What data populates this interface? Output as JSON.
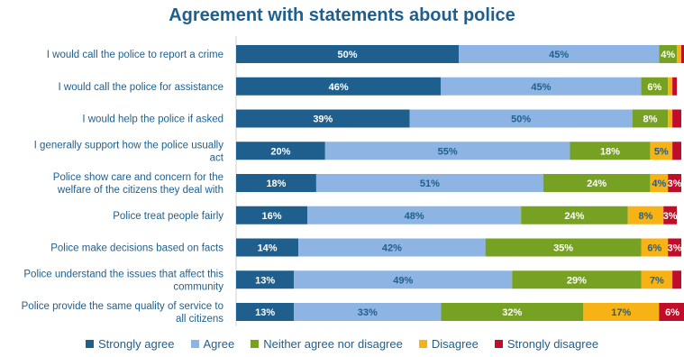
{
  "chart_data": {
    "type": "bar",
    "orientation": "horizontal",
    "stacked": true,
    "title": "Agreement with statements about police",
    "categories": [
      "I would call the police to report a crime",
      "I would call the police for assistance",
      "I would help the police if asked",
      "I generally support how the police usually act",
      "Police show care and concern for the welfare of the citizens they deal with",
      "Police treat people fairly",
      "Police make decisions based on facts",
      "Police understand the issues that affect this community",
      "Police provide the same quality of service to all citizens"
    ],
    "category_lines": [
      [
        "I would call the police to report a crime"
      ],
      [
        "I would call the police for assistance"
      ],
      [
        "I would help the police if asked"
      ],
      [
        "I generally support how the police usually",
        "act"
      ],
      [
        "Police show care and concern for the",
        "welfare of the citizens they deal with"
      ],
      [
        "Police treat people fairly"
      ],
      [
        "Police make decisions based on facts"
      ],
      [
        "Police understand the issues that affect this",
        "community"
      ],
      [
        "Police provide the same quality of service to",
        "all citizens"
      ]
    ],
    "series": [
      {
        "name": "Strongly agree",
        "color": "#1f5f8e",
        "label_color": "#ffffff",
        "values": [
          50,
          46,
          39,
          20,
          18,
          16,
          14,
          13,
          13
        ]
      },
      {
        "name": "Agree",
        "color": "#8db4e2",
        "label_color": "#1f5f8e",
        "values": [
          45,
          45,
          50,
          55,
          51,
          48,
          42,
          49,
          33
        ]
      },
      {
        "name": "Neither agree nor disagree",
        "color": "#77a123",
        "label_color": "#ffffff",
        "values": [
          4,
          6,
          8,
          18,
          24,
          24,
          35,
          29,
          32
        ]
      },
      {
        "name": "Disagree",
        "color": "#f7b216",
        "label_color": "#1f5f8e",
        "values": [
          1,
          1,
          1,
          5,
          4,
          8,
          6,
          7,
          17
        ]
      },
      {
        "name": "Strongly disagree",
        "color": "#c00d2a",
        "label_color": "#ffffff",
        "values": [
          1,
          1,
          2,
          2,
          3,
          3,
          3,
          2,
          6
        ]
      }
    ],
    "label_min": 3,
    "xlim": [
      0,
      100
    ],
    "grid": false,
    "legend_position": "bottom"
  }
}
